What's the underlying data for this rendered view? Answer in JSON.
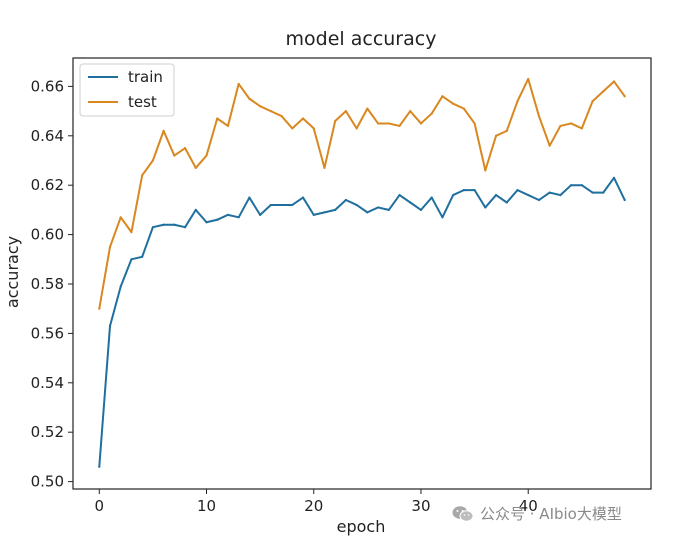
{
  "chart_data": {
    "type": "line",
    "title": "model accuracy",
    "xlabel": "epoch",
    "ylabel": "accuracy",
    "xlim": [
      -2.45,
      51.45
    ],
    "ylim": [
      0.497,
      0.6715
    ],
    "x_ticks": [
      0,
      10,
      20,
      30,
      40
    ],
    "y_ticks": [
      0.5,
      0.52,
      0.54,
      0.56,
      0.58,
      0.6,
      0.62,
      0.64,
      0.66
    ],
    "y_tick_labels": [
      "0.50",
      "0.52",
      "0.54",
      "0.56",
      "0.58",
      "0.60",
      "0.62",
      "0.64",
      "0.66"
    ],
    "legend_position": "top-left",
    "grid": false,
    "x": [
      0,
      1,
      2,
      3,
      4,
      5,
      6,
      7,
      8,
      9,
      10,
      11,
      12,
      13,
      14,
      15,
      16,
      17,
      18,
      19,
      20,
      21,
      22,
      23,
      24,
      25,
      26,
      27,
      28,
      29,
      30,
      31,
      32,
      33,
      34,
      35,
      36,
      37,
      38,
      39,
      40,
      41,
      42,
      43,
      44,
      45,
      46,
      47,
      48,
      49
    ],
    "series": [
      {
        "name": "train",
        "color": "#1f6f9f",
        "values": [
          0.506,
          0.563,
          0.579,
          0.59,
          0.591,
          0.603,
          0.604,
          0.604,
          0.603,
          0.61,
          0.605,
          0.606,
          0.608,
          0.607,
          0.615,
          0.608,
          0.612,
          0.612,
          0.612,
          0.615,
          0.608,
          0.609,
          0.61,
          0.614,
          0.612,
          0.609,
          0.611,
          0.61,
          0.616,
          0.613,
          0.61,
          0.615,
          0.607,
          0.616,
          0.618,
          0.618,
          0.611,
          0.616,
          0.613,
          0.618,
          0.616,
          0.614,
          0.617,
          0.616,
          0.62,
          0.62,
          0.617,
          0.617,
          0.623,
          0.614
        ]
      },
      {
        "name": "test",
        "color": "#d9871f",
        "values": [
          0.57,
          0.595,
          0.607,
          0.601,
          0.624,
          0.63,
          0.642,
          0.632,
          0.635,
          0.627,
          0.632,
          0.647,
          0.644,
          0.661,
          0.655,
          0.652,
          0.65,
          0.648,
          0.643,
          0.647,
          0.643,
          0.627,
          0.646,
          0.65,
          0.643,
          0.651,
          0.645,
          0.645,
          0.644,
          0.65,
          0.645,
          0.649,
          0.656,
          0.653,
          0.651,
          0.645,
          0.626,
          0.64,
          0.642,
          0.654,
          0.663,
          0.648,
          0.636,
          0.644,
          0.645,
          0.643,
          0.654,
          0.658,
          0.662,
          0.656
        ]
      }
    ]
  },
  "watermark": {
    "icon": "wechat-icon",
    "text": "公众号 · AIbio大模型"
  }
}
